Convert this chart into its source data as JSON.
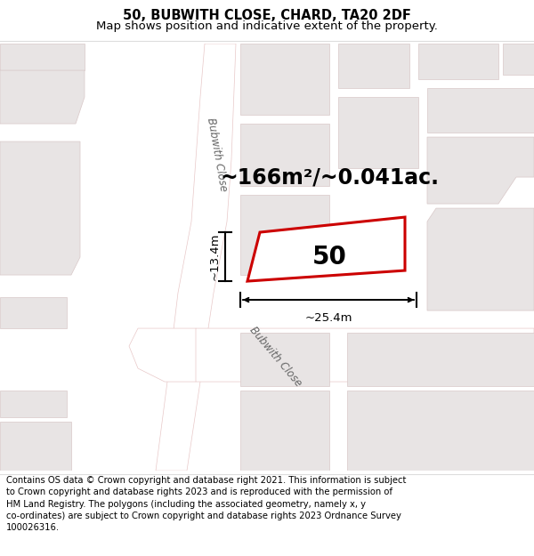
{
  "title_line1": "50, BUBWITH CLOSE, CHARD, TA20 2DF",
  "title_line2": "Map shows position and indicative extent of the property.",
  "footer_text": "Contains OS data © Crown copyright and database right 2021. This information is subject to Crown copyright and database rights 2023 and is reproduced with the permission of HM Land Registry. The polygons (including the associated geometry, namely x, y co-ordinates) are subject to Crown copyright and database rights 2023 Ordnance Survey 100026316.",
  "area_text": "~166m²/~0.041ac.",
  "property_number": "50",
  "width_label": "~25.4m",
  "height_label": "~13.4m",
  "map_bg": "#f7f4f4",
  "road_fill": "#ffffff",
  "road_edge": "#e8c8c8",
  "building_fill": "#e8e4e4",
  "building_edge": "#d8c8c8",
  "plot_edge_color": "#cc0000",
  "street_label": "Bubwith Close",
  "title_fontsize": 10.5,
  "subtitle_fontsize": 9.5,
  "footer_fontsize": 7.2,
  "area_fontsize": 17,
  "number_fontsize": 20
}
